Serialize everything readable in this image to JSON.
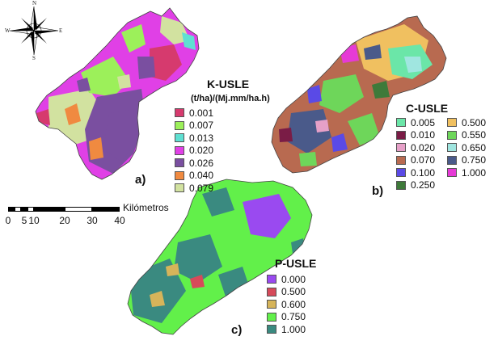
{
  "compass": {
    "north": "N",
    "south": "S",
    "east": "E",
    "west": "W"
  },
  "scale_bar": {
    "unit": "Kilómetros",
    "ticks": [
      "0",
      "5",
      "10",
      "20",
      "30",
      "40"
    ]
  },
  "panels": [
    {
      "label": "a)",
      "legend": {
        "title": "K-USLE",
        "subtitle": "(t/ha)/(Mj.mm/ha.h)",
        "items": [
          {
            "value": "0.001",
            "color": "#d63a6e"
          },
          {
            "value": "0.007",
            "color": "#9cf05a"
          },
          {
            "value": "0.013",
            "color": "#5fe0d2"
          },
          {
            "value": "0.020",
            "color": "#e040e6"
          },
          {
            "value": "0.026",
            "color": "#7a4fa0"
          },
          {
            "value": "0.040",
            "color": "#f08a40"
          },
          {
            "value": "0.079",
            "color": "#d2e2a0"
          }
        ]
      }
    },
    {
      "label": "b)",
      "legend": {
        "title": "C-USLE",
        "items": [
          {
            "value": "0.005",
            "color": "#6be6a8"
          },
          {
            "value": "0.010",
            "color": "#7a1c46"
          },
          {
            "value": "0.020",
            "color": "#e6a0c8"
          },
          {
            "value": "0.070",
            "color": "#b86a50"
          },
          {
            "value": "0.100",
            "color": "#5a4ae6"
          },
          {
            "value": "0.250",
            "color": "#3e7a3a"
          },
          {
            "value": "0.500",
            "color": "#f0c060"
          },
          {
            "value": "0.550",
            "color": "#6ed65a"
          },
          {
            "value": "0.650",
            "color": "#a0e6e0"
          },
          {
            "value": "0.750",
            "color": "#4a5a8a"
          },
          {
            "value": "1.000",
            "color": "#e63ad6"
          }
        ]
      }
    },
    {
      "label": "c)",
      "legend": {
        "title": "P-USLE",
        "items": [
          {
            "value": "0.000",
            "color": "#9a4af0"
          },
          {
            "value": "0.500",
            "color": "#d64a5a"
          },
          {
            "value": "0.600",
            "color": "#d6b45a"
          },
          {
            "value": "0.750",
            "color": "#62f04a"
          },
          {
            "value": "1.000",
            "color": "#3a8a80"
          }
        ]
      }
    }
  ]
}
